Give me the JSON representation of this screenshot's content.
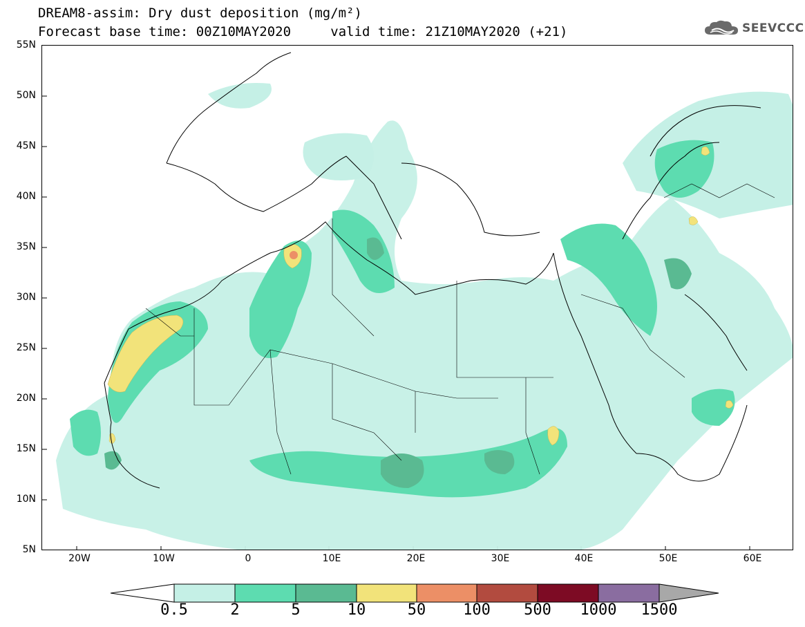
{
  "title": {
    "line1": "DREAM8-assim: Dry dust deposition (mg/m²)",
    "line2_left": "Forecast base time: 00Z10MAY2020",
    "line2_right": "valid time: 21Z10MAY2020 (+21)"
  },
  "logo": {
    "text": "SEEVCCC",
    "icon": "cloud-icon"
  },
  "axes": {
    "y_ticks": [
      "55N",
      "50N",
      "45N",
      "40N",
      "35N",
      "30N",
      "25N",
      "20N",
      "15N",
      "10N",
      "5N"
    ],
    "x_ticks": [
      "20W",
      "10W",
      "0",
      "10E",
      "20E",
      "30E",
      "40E",
      "50E",
      "60E"
    ]
  },
  "colorbar": {
    "labels": [
      "0.5",
      "2",
      "5",
      "10",
      "50",
      "100",
      "500",
      "1000",
      "1500"
    ],
    "colors": [
      "#c5f0e6",
      "#5ddcb0",
      "#5aba92",
      "#f2e37a",
      "#ec8f66",
      "#b24b3f",
      "#7d0b24",
      "#8a6da0",
      "#a8a8a8"
    ],
    "under_color": "#ffffff",
    "over_color": "#a8a8a8"
  },
  "map": {
    "domain": "North Africa, Europe, Middle East",
    "lon_range": [
      -25,
      65
    ],
    "lat_range": [
      5,
      55
    ],
    "colors": {
      "land_bg": "#ffffff",
      "coast": "#000000"
    }
  }
}
